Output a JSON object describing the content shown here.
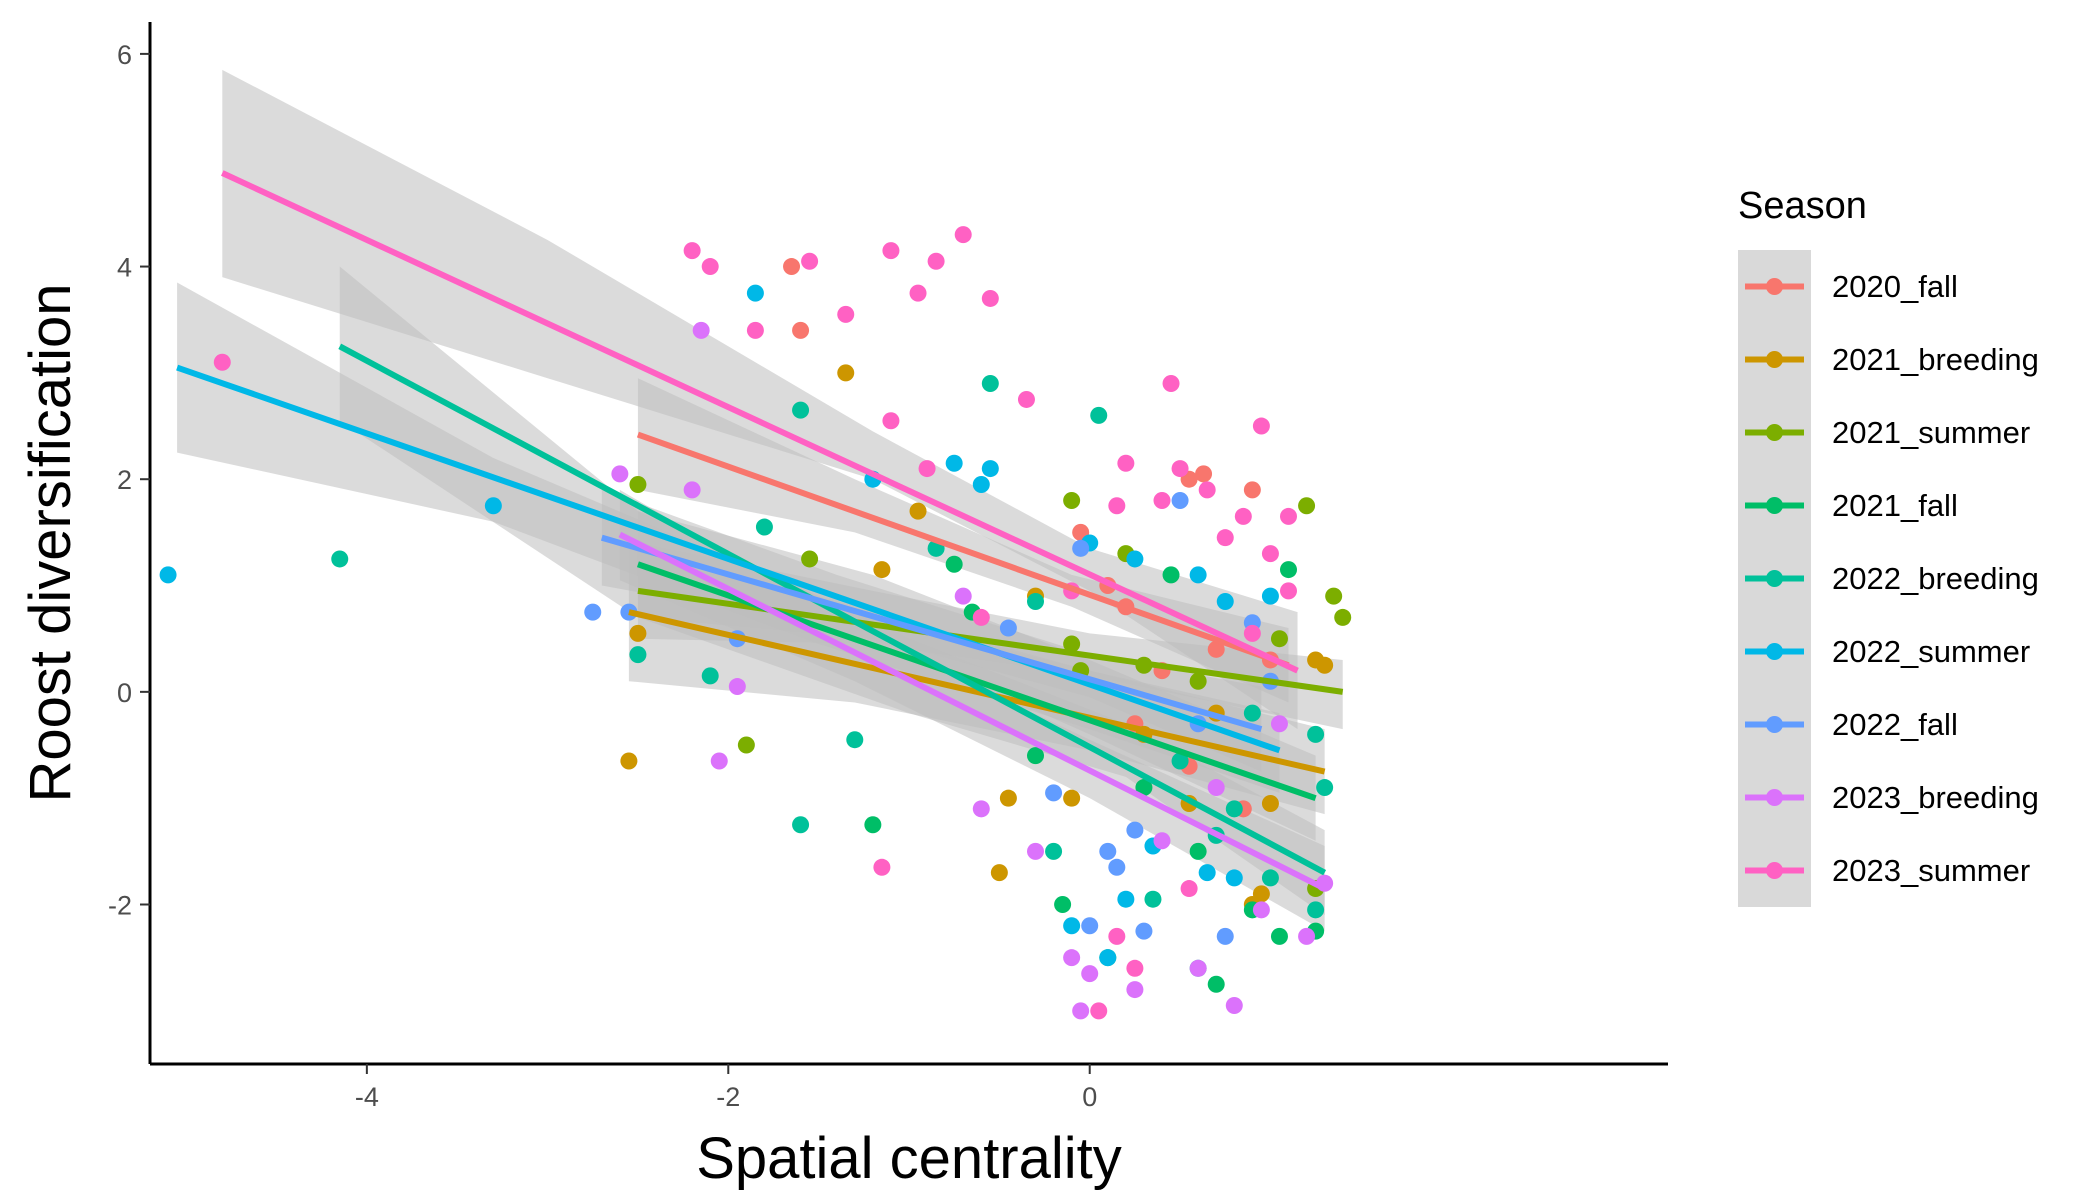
{
  "chart_data": {
    "type": "scatter",
    "title": "",
    "xlabel": "Spatial centrality",
    "ylabel": "Roost diversification",
    "xlim": [
      -5.2,
      3.2
    ],
    "ylim": [
      -3.5,
      6.3
    ],
    "x_ticks": [
      -4,
      -2,
      0
    ],
    "y_ticks": [
      -2,
      0,
      2,
      4,
      6
    ],
    "x_tick_labels": [
      "-4",
      "-2",
      "0"
    ],
    "y_tick_labels": [
      "-2",
      "0",
      "2",
      "4",
      "6"
    ],
    "grid": false,
    "legend": {
      "title": "Season",
      "placement": "right"
    },
    "confidence_band_color": "#bebebe",
    "series": [
      {
        "name": "2020_fall",
        "color": "#F8766D",
        "fit": [
          [
            -2.5,
            2.42
          ],
          [
            1.1,
            0.25
          ]
        ],
        "band": [
          [
            -2.5,
            2.95,
            1.9
          ],
          [
            -1.3,
            2.0,
            1.5
          ],
          [
            -0.1,
            1.1,
            0.8
          ],
          [
            1.1,
            0.6,
            -0.1
          ]
        ],
        "points": [
          [
            -1.65,
            4.0
          ],
          [
            -1.6,
            3.4
          ],
          [
            -0.05,
            1.5
          ],
          [
            0.55,
            2.0
          ],
          [
            0.63,
            2.05
          ],
          [
            0.9,
            1.9
          ],
          [
            0.2,
            0.8
          ],
          [
            0.4,
            0.2
          ],
          [
            0.7,
            0.4
          ],
          [
            1.0,
            0.3
          ],
          [
            0.25,
            -0.3
          ],
          [
            0.55,
            -0.7
          ],
          [
            0.85,
            -1.1
          ],
          [
            0.1,
            1.0
          ]
        ]
      },
      {
        "name": "2021_breeding",
        "color": "#CD9600",
        "fit": [
          [
            -2.55,
            0.75
          ],
          [
            1.3,
            -0.75
          ]
        ],
        "band": [
          [
            -2.55,
            1.4,
            0.1
          ],
          [
            -1.3,
            0.75,
            -0.1
          ],
          [
            0.0,
            0.2,
            -0.55
          ],
          [
            1.3,
            -0.35,
            -1.15
          ]
        ],
        "points": [
          [
            -2.55,
            -0.65
          ],
          [
            -2.5,
            0.55
          ],
          [
            -1.35,
            3.0
          ],
          [
            -0.95,
            1.7
          ],
          [
            -1.15,
            1.15
          ],
          [
            -0.45,
            -1.0
          ],
          [
            -0.5,
            -1.7
          ],
          [
            -0.1,
            -1.0
          ],
          [
            0.55,
            -1.05
          ],
          [
            0.9,
            -2.0
          ],
          [
            0.95,
            -1.9
          ],
          [
            1.0,
            -1.05
          ],
          [
            1.25,
            0.3
          ],
          [
            1.3,
            0.25
          ],
          [
            -0.3,
            0.9
          ],
          [
            0.3,
            -0.4
          ],
          [
            0.7,
            -0.2
          ]
        ]
      },
      {
        "name": "2021_summer",
        "color": "#7CAE00",
        "fit": [
          [
            -2.5,
            0.95
          ],
          [
            1.4,
            0.0
          ]
        ],
        "band": [
          [
            -2.5,
            1.4,
            0.5
          ],
          [
            -1.2,
            0.95,
            0.45
          ],
          [
            0.0,
            0.55,
            0.15
          ],
          [
            1.4,
            0.3,
            -0.35
          ]
        ],
        "points": [
          [
            -2.5,
            1.95
          ],
          [
            -1.9,
            -0.5
          ],
          [
            -1.55,
            1.25
          ],
          [
            -0.1,
            1.8
          ],
          [
            -0.1,
            0.45
          ],
          [
            -0.05,
            0.2
          ],
          [
            0.3,
            0.25
          ],
          [
            0.6,
            0.1
          ],
          [
            1.05,
            0.5
          ],
          [
            1.2,
            1.75
          ],
          [
            1.35,
            0.9
          ],
          [
            1.4,
            0.7
          ],
          [
            1.25,
            -1.85
          ],
          [
            0.2,
            1.3
          ]
        ]
      },
      {
        "name": "2021_fall",
        "color": "#00BE67",
        "fit": [
          [
            -2.5,
            1.2
          ],
          [
            1.25,
            -1.0
          ]
        ],
        "band": [
          [
            -2.5,
            1.7,
            0.7
          ],
          [
            -1.2,
            1.1,
            0.5
          ],
          [
            0.0,
            0.3,
            -0.4
          ],
          [
            1.25,
            -0.6,
            -1.4
          ]
        ],
        "points": [
          [
            -1.2,
            -1.25
          ],
          [
            -0.65,
            0.75
          ],
          [
            -0.3,
            -0.6
          ],
          [
            -0.15,
            -2.0
          ],
          [
            0.1,
            -2.5
          ],
          [
            0.45,
            1.1
          ],
          [
            0.7,
            -2.75
          ],
          [
            0.9,
            -2.05
          ],
          [
            1.05,
            -2.3
          ],
          [
            1.25,
            -2.25
          ],
          [
            1.1,
            1.15
          ],
          [
            0.3,
            -0.9
          ],
          [
            0.6,
            -1.5
          ],
          [
            -0.75,
            1.2
          ]
        ]
      },
      {
        "name": "2022_breeding",
        "color": "#00C19A",
        "fit": [
          [
            -4.15,
            3.25
          ],
          [
            1.3,
            -1.7
          ]
        ],
        "band": [
          [
            -4.15,
            4.0,
            2.55
          ],
          [
            -2.5,
            1.7,
            0.7
          ],
          [
            -1.0,
            0.5,
            -0.2
          ],
          [
            0.2,
            -0.3,
            -0.8
          ],
          [
            1.3,
            -1.3,
            -2.1
          ]
        ],
        "points": [
          [
            -4.15,
            1.25
          ],
          [
            -2.5,
            0.35
          ],
          [
            -2.1,
            0.15
          ],
          [
            -1.6,
            2.65
          ],
          [
            -1.6,
            -1.25
          ],
          [
            -1.3,
            -0.45
          ],
          [
            -0.55,
            2.9
          ],
          [
            0.05,
            2.6
          ],
          [
            -0.2,
            -1.5
          ],
          [
            0.35,
            -1.95
          ],
          [
            0.6,
            -2.6
          ],
          [
            0.7,
            -1.35
          ],
          [
            1.0,
            -1.75
          ],
          [
            1.25,
            -2.05
          ],
          [
            1.3,
            -0.9
          ],
          [
            1.25,
            -0.4
          ],
          [
            0.9,
            -0.2
          ],
          [
            -1.8,
            1.55
          ],
          [
            -0.85,
            1.35
          ],
          [
            -0.3,
            0.85
          ],
          [
            0.5,
            -0.65
          ],
          [
            0.8,
            -1.1
          ]
        ]
      },
      {
        "name": "2022_summer",
        "color": "#00B8E7",
        "fit": [
          [
            -5.05,
            3.05
          ],
          [
            1.05,
            -0.55
          ]
        ],
        "band": [
          [
            -5.05,
            3.85,
            2.25
          ],
          [
            -3.3,
            2.2,
            1.6
          ],
          [
            -1.5,
            0.9,
            0.45
          ],
          [
            0.0,
            0.2,
            -0.35
          ],
          [
            1.05,
            -0.2,
            -0.95
          ]
        ],
        "points": [
          [
            -5.1,
            1.1
          ],
          [
            -3.3,
            1.75
          ],
          [
            -1.85,
            3.75
          ],
          [
            -0.55,
            2.1
          ],
          [
            -0.75,
            2.15
          ],
          [
            -0.6,
            1.95
          ],
          [
            0.0,
            1.4
          ],
          [
            0.25,
            1.25
          ],
          [
            0.6,
            1.1
          ],
          [
            0.75,
            0.85
          ],
          [
            1.0,
            0.9
          ],
          [
            0.65,
            -1.7
          ],
          [
            0.8,
            -1.75
          ],
          [
            0.2,
            -1.95
          ],
          [
            0.1,
            -2.5
          ],
          [
            -0.1,
            -2.2
          ],
          [
            0.35,
            -1.45
          ],
          [
            -1.2,
            2.0
          ]
        ]
      },
      {
        "name": "2022_fall",
        "color": "#619CFF",
        "fit": [
          [
            -2.7,
            1.45
          ],
          [
            0.95,
            -0.35
          ]
        ],
        "band": [
          [
            -2.7,
            1.9,
            1.0
          ],
          [
            -1.4,
            1.1,
            0.6
          ],
          [
            0.0,
            0.35,
            -0.05
          ],
          [
            0.95,
            0.05,
            -0.75
          ]
        ],
        "points": [
          [
            -2.75,
            0.75
          ],
          [
            -2.55,
            0.75
          ],
          [
            -1.95,
            0.5
          ],
          [
            -0.05,
            1.35
          ],
          [
            0.5,
            1.8
          ],
          [
            0.9,
            0.65
          ],
          [
            0.15,
            -1.65
          ],
          [
            0.25,
            -1.3
          ],
          [
            0.0,
            -2.2
          ],
          [
            0.1,
            -1.5
          ],
          [
            0.3,
            -2.25
          ],
          [
            0.75,
            -2.3
          ],
          [
            -0.2,
            -0.95
          ],
          [
            0.6,
            -0.3
          ],
          [
            1.0,
            0.1
          ],
          [
            -0.45,
            0.6
          ]
        ]
      },
      {
        "name": "2023_breeding",
        "color": "#DB72FB",
        "fit": [
          [
            -2.6,
            1.48
          ],
          [
            1.3,
            -1.85
          ]
        ],
        "band": [
          [
            -2.6,
            1.9,
            1.05
          ],
          [
            -1.3,
            0.6,
            0.1
          ],
          [
            0.0,
            -0.45,
            -1.0
          ],
          [
            1.3,
            -1.45,
            -2.25
          ]
        ],
        "points": [
          [
            -2.6,
            2.05
          ],
          [
            -2.15,
            3.4
          ],
          [
            -2.05,
            -0.65
          ],
          [
            -1.95,
            0.05
          ],
          [
            -2.2,
            1.9
          ],
          [
            -0.6,
            -1.1
          ],
          [
            -0.3,
            -1.5
          ],
          [
            -0.1,
            -2.5
          ],
          [
            -0.05,
            -3.0
          ],
          [
            0.0,
            -2.65
          ],
          [
            0.25,
            -2.8
          ],
          [
            0.6,
            -2.6
          ],
          [
            0.8,
            -2.95
          ],
          [
            0.95,
            -2.05
          ],
          [
            1.2,
            -2.3
          ],
          [
            1.3,
            -1.8
          ],
          [
            -0.7,
            0.9
          ],
          [
            0.4,
            -1.4
          ],
          [
            0.7,
            -0.9
          ],
          [
            1.05,
            -0.3
          ]
        ]
      },
      {
        "name": "2023_summer",
        "color": "#FF61C3",
        "fit": [
          [
            -4.8,
            4.88
          ],
          [
            1.15,
            0.2
          ]
        ],
        "band": [
          [
            -4.8,
            5.85,
            3.9
          ],
          [
            -3.0,
            4.25,
            2.95
          ],
          [
            -1.2,
            2.45,
            2.0
          ],
          [
            0.0,
            1.35,
            0.95
          ],
          [
            1.15,
            0.75,
            -0.35
          ]
        ],
        "points": [
          [
            -4.8,
            3.1
          ],
          [
            -2.2,
            4.15
          ],
          [
            -2.1,
            4.0
          ],
          [
            -1.85,
            3.4
          ],
          [
            -1.55,
            4.05
          ],
          [
            -1.35,
            3.55
          ],
          [
            -1.1,
            4.15
          ],
          [
            -0.95,
            3.75
          ],
          [
            -0.85,
            4.05
          ],
          [
            -0.7,
            4.3
          ],
          [
            -0.55,
            3.7
          ],
          [
            -0.35,
            2.75
          ],
          [
            -1.1,
            2.55
          ],
          [
            -0.9,
            2.1
          ],
          [
            0.2,
            2.15
          ],
          [
            0.45,
            2.9
          ],
          [
            0.5,
            2.1
          ],
          [
            0.65,
            1.9
          ],
          [
            0.95,
            2.5
          ],
          [
            1.1,
            1.65
          ],
          [
            0.85,
            1.65
          ],
          [
            1.0,
            1.3
          ],
          [
            0.15,
            1.75
          ],
          [
            -0.1,
            0.95
          ],
          [
            0.05,
            -3.0
          ],
          [
            0.15,
            -2.3
          ],
          [
            0.25,
            -2.6
          ],
          [
            0.55,
            -1.85
          ],
          [
            -1.15,
            -1.65
          ],
          [
            -0.6,
            0.7
          ],
          [
            0.4,
            1.8
          ],
          [
            0.75,
            1.45
          ],
          [
            0.9,
            0.55
          ],
          [
            1.1,
            0.95
          ]
        ]
      }
    ]
  }
}
